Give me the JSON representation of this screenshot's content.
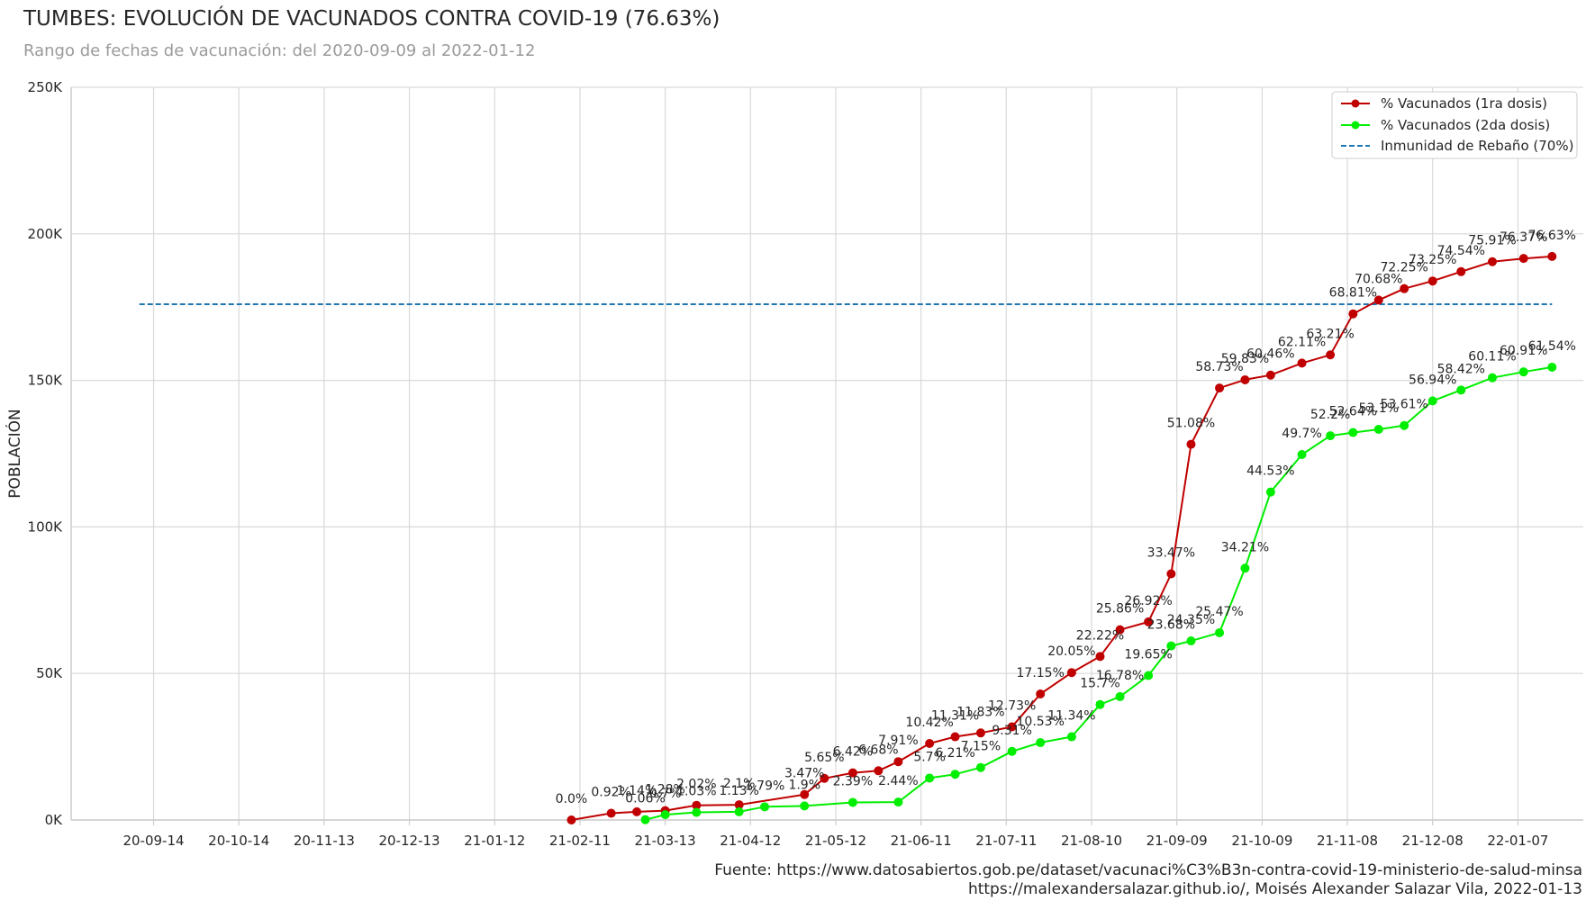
{
  "chart_data": {
    "type": "line",
    "title": "TUMBES: EVOLUCIÓN DE VACUNADOS CONTRA COVID-19 (76.63%)",
    "subtitle": "Rango de fechas de vacunación: del 2020-09-09 al 2022-01-12",
    "ylabel": "POBLACIÓN",
    "xlabel": "",
    "xlim": [
      "2020-08-16",
      "2022-01-30"
    ],
    "ylim": [
      0,
      250000
    ],
    "y_ticks": [
      0,
      50000,
      100000,
      150000,
      200000,
      250000
    ],
    "y_tick_labels": [
      "0K",
      "50K",
      "100K",
      "150K",
      "200K",
      "250K"
    ],
    "x_ticks": [
      "2020-09-14",
      "2020-10-14",
      "2020-11-13",
      "2020-12-13",
      "2021-01-12",
      "2021-02-11",
      "2021-03-13",
      "2021-04-12",
      "2021-05-12",
      "2021-06-11",
      "2021-07-11",
      "2021-08-10",
      "2021-09-09",
      "2021-10-09",
      "2021-11-08",
      "2021-12-08",
      "2022-01-07"
    ],
    "x_tick_labels": [
      "20-09-14",
      "20-10-14",
      "20-11-13",
      "20-12-13",
      "21-01-12",
      "21-02-11",
      "21-03-13",
      "21-04-12",
      "21-05-12",
      "21-06-11",
      "21-07-11",
      "21-08-10",
      "21-09-09",
      "21-10-09",
      "21-11-08",
      "21-12-08",
      "22-01-07"
    ],
    "grid": true,
    "legend_position": "top-right",
    "series": [
      {
        "name": "% Vacunados (1ra dosis)",
        "color": "#c00000",
        "points": [
          {
            "x": "2021-02-08",
            "y": 0,
            "label": "0.0%"
          },
          {
            "x": "2021-02-22",
            "y": 2300,
            "label": "0.92%"
          },
          {
            "x": "2021-03-03",
            "y": 2800,
            "label": "1.14%"
          },
          {
            "x": "2021-03-13",
            "y": 3200,
            "label": "1.28%"
          },
          {
            "x": "2021-03-24",
            "y": 5000,
            "label": "2.02%"
          },
          {
            "x": "2021-04-08",
            "y": 5200,
            "label": "2.1%"
          },
          {
            "x": "2021-05-01",
            "y": 8700,
            "label": "3.47%"
          },
          {
            "x": "2021-05-08",
            "y": 14200,
            "label": "5.65%"
          },
          {
            "x": "2021-05-18",
            "y": 16100,
            "label": "6.42%"
          },
          {
            "x": "2021-05-27",
            "y": 16800,
            "label": "6.68%"
          },
          {
            "x": "2021-06-03",
            "y": 19900,
            "label": "7.91%"
          },
          {
            "x": "2021-06-14",
            "y": 26100,
            "label": "10.42%"
          },
          {
            "x": "2021-06-23",
            "y": 28400,
            "label": "11.31%"
          },
          {
            "x": "2021-07-02",
            "y": 29700,
            "label": "11.83%"
          },
          {
            "x": "2021-07-13",
            "y": 31800,
            "label": "12.73%"
          },
          {
            "x": "2021-07-23",
            "y": 43000,
            "label": "17.15%"
          },
          {
            "x": "2021-08-03",
            "y": 50300,
            "label": "20.05%"
          },
          {
            "x": "2021-08-13",
            "y": 55800,
            "label": "22.22%"
          },
          {
            "x": "2021-08-20",
            "y": 64900,
            "label": "25.86%"
          },
          {
            "x": "2021-08-30",
            "y": 67600,
            "label": "26.92%"
          },
          {
            "x": "2021-09-07",
            "y": 84000,
            "label": "33.47%"
          },
          {
            "x": "2021-09-14",
            "y": 128200,
            "label": "51.08%"
          },
          {
            "x": "2021-09-24",
            "y": 147400,
            "label": "58.73%"
          },
          {
            "x": "2021-10-03",
            "y": 150200,
            "label": "59.83%"
          },
          {
            "x": "2021-10-12",
            "y": 151800,
            "label": "60.46%"
          },
          {
            "x": "2021-10-23",
            "y": 155900,
            "label": "62.11%"
          },
          {
            "x": "2021-11-02",
            "y": 158700,
            "label": "63.21%"
          },
          {
            "x": "2021-11-10",
            "y": 172700,
            "label": "68.81%"
          },
          {
            "x": "2021-11-19",
            "y": 177400,
            "label": "70.68%"
          },
          {
            "x": "2021-11-28",
            "y": 181300,
            "label": "72.25%"
          },
          {
            "x": "2021-12-08",
            "y": 183900,
            "label": "73.25%"
          },
          {
            "x": "2021-12-18",
            "y": 187100,
            "label": "74.54%"
          },
          {
            "x": "2021-12-29",
            "y": 190500,
            "label": "75.91%"
          },
          {
            "x": "2022-01-09",
            "y": 191600,
            "label": "76.37%"
          },
          {
            "x": "2022-01-19",
            "y": 192300,
            "label": "76.63%"
          }
        ]
      },
      {
        "name": "% Vacunados (2da dosis)",
        "color": "#00ee00",
        "points": [
          {
            "x": "2021-03-06",
            "y": 100,
            "label": "0.06%"
          },
          {
            "x": "2021-03-13",
            "y": 1800,
            "label": "0.7%"
          },
          {
            "x": "2021-03-24",
            "y": 2600,
            "label": "1.03%"
          },
          {
            "x": "2021-04-08",
            "y": 2800,
            "label": "1.13%"
          },
          {
            "x": "2021-04-17",
            "y": 4500,
            "label": "1.79%"
          },
          {
            "x": "2021-05-01",
            "y": 4800,
            "label": "1.9%"
          },
          {
            "x": "2021-05-18",
            "y": 6000,
            "label": "2.39%"
          },
          {
            "x": "2021-06-03",
            "y": 6100,
            "label": "2.44%"
          },
          {
            "x": "2021-06-14",
            "y": 14300,
            "label": "5.7%"
          },
          {
            "x": "2021-06-23",
            "y": 15600,
            "label": "6.21%"
          },
          {
            "x": "2021-07-02",
            "y": 17900,
            "label": "7.15%"
          },
          {
            "x": "2021-07-13",
            "y": 23400,
            "label": "9.31%"
          },
          {
            "x": "2021-07-23",
            "y": 26400,
            "label": "10.53%"
          },
          {
            "x": "2021-08-03",
            "y": 28400,
            "label": "11.34%"
          },
          {
            "x": "2021-08-13",
            "y": 39400,
            "label": "15.7%"
          },
          {
            "x": "2021-08-20",
            "y": 42100,
            "label": "16.78%"
          },
          {
            "x": "2021-08-30",
            "y": 49300,
            "label": "19.65%"
          },
          {
            "x": "2021-09-07",
            "y": 59400,
            "label": "23.68%"
          },
          {
            "x": "2021-09-14",
            "y": 61100,
            "label": "24.35%"
          },
          {
            "x": "2021-09-24",
            "y": 63900,
            "label": "25.47%"
          },
          {
            "x": "2021-10-03",
            "y": 85900,
            "label": "34.21%"
          },
          {
            "x": "2021-10-12",
            "y": 111900,
            "label": "44.53%"
          },
          {
            "x": "2021-10-23",
            "y": 124700,
            "label": "49.7%"
          },
          {
            "x": "2021-11-02",
            "y": 131100,
            "label": "52.2%"
          },
          {
            "x": "2021-11-10",
            "y": 132200,
            "label": "52.64%"
          },
          {
            "x": "2021-11-19",
            "y": 133300,
            "label": "53.1%"
          },
          {
            "x": "2021-11-28",
            "y": 134600,
            "label": "53.61%"
          },
          {
            "x": "2021-12-08",
            "y": 143000,
            "label": "56.94%"
          },
          {
            "x": "2021-12-18",
            "y": 146700,
            "label": "58.42%"
          },
          {
            "x": "2021-12-29",
            "y": 150900,
            "label": "60.11%"
          },
          {
            "x": "2022-01-09",
            "y": 152900,
            "label": "60.91%"
          },
          {
            "x": "2022-01-19",
            "y": 154500,
            "label": "61.54%"
          }
        ]
      }
    ],
    "threshold": {
      "name": "Inmunidad de Rebaño (70%)",
      "color": "#1f77b4",
      "y": 176000,
      "x_start": "2020-09-09",
      "x_end": "2022-01-19"
    }
  },
  "source": {
    "line1": "Fuente: https://www.datosabiertos.gob.pe/dataset/vacunaci%C3%B3n-contra-covid-19-ministerio-de-salud-minsa",
    "line2": "https://malexandersalazar.github.io/, Moisés Alexander Salazar Vila, 2022-01-13"
  }
}
